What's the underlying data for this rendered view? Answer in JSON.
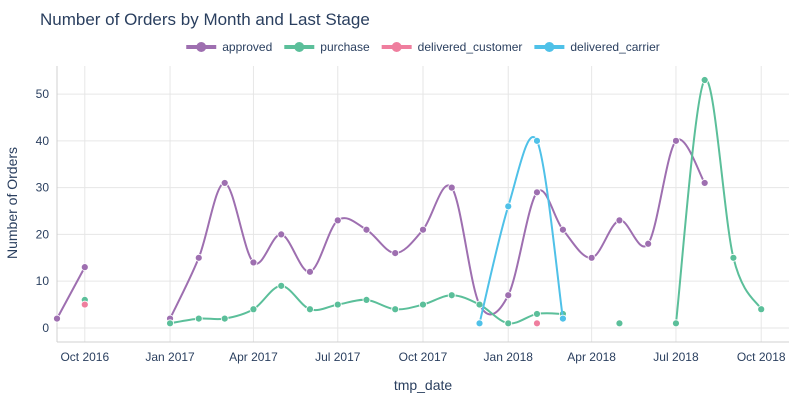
{
  "chart_data": {
    "type": "line",
    "title": "Number of Orders by Month and Last Stage",
    "xlabel": "tmp_date",
    "ylabel": "Number of Orders",
    "x_ticks": [
      "Oct 2016",
      "Jan 2017",
      "Apr 2017",
      "Jul 2017",
      "Oct 2017",
      "Jan 2018",
      "Apr 2018",
      "Jul 2018",
      "Oct 2018"
    ],
    "y_ticks": [
      "0",
      "10",
      "20",
      "30",
      "40",
      "50"
    ],
    "xlim": [
      "2016-09-01",
      "2018-10-31"
    ],
    "ylim": [
      -3,
      56
    ],
    "grid": true,
    "legend_position": "top",
    "series": [
      {
        "name": "approved",
        "color": "#9e6fb0",
        "points": [
          {
            "x": "2016-09-01",
            "y": 2
          },
          {
            "x": "2016-10-01",
            "y": 13
          },
          {
            "x": "2017-01-01",
            "y": 2
          },
          {
            "x": "2017-02-01",
            "y": 15
          },
          {
            "x": "2017-03-01",
            "y": 31
          },
          {
            "x": "2017-04-01",
            "y": 14
          },
          {
            "x": "2017-05-01",
            "y": 20
          },
          {
            "x": "2017-06-01",
            "y": 12
          },
          {
            "x": "2017-07-01",
            "y": 23
          },
          {
            "x": "2017-08-01",
            "y": 21
          },
          {
            "x": "2017-09-01",
            "y": 16
          },
          {
            "x": "2017-10-01",
            "y": 21
          },
          {
            "x": "2017-11-01",
            "y": 30
          },
          {
            "x": "2017-12-01",
            "y": 5
          },
          {
            "x": "2018-01-01",
            "y": 7
          },
          {
            "x": "2018-02-01",
            "y": 29
          },
          {
            "x": "2018-03-01",
            "y": 21
          },
          {
            "x": "2018-04-01",
            "y": 15
          },
          {
            "x": "2018-05-01",
            "y": 23
          },
          {
            "x": "2018-06-01",
            "y": 18
          },
          {
            "x": "2018-07-01",
            "y": 40
          },
          {
            "x": "2018-08-01",
            "y": 31
          }
        ]
      },
      {
        "name": "purchase",
        "color": "#5bbf9a",
        "points": [
          {
            "x": "2016-10-01",
            "y": 6
          },
          {
            "x": "2017-01-01",
            "y": 1
          },
          {
            "x": "2017-02-01",
            "y": 2
          },
          {
            "x": "2017-03-01",
            "y": 2
          },
          {
            "x": "2017-04-01",
            "y": 4
          },
          {
            "x": "2017-05-01",
            "y": 9
          },
          {
            "x": "2017-06-01",
            "y": 4
          },
          {
            "x": "2017-07-01",
            "y": 5
          },
          {
            "x": "2017-08-01",
            "y": 6
          },
          {
            "x": "2017-09-01",
            "y": 4
          },
          {
            "x": "2017-10-01",
            "y": 5
          },
          {
            "x": "2017-11-01",
            "y": 7
          },
          {
            "x": "2017-12-01",
            "y": 5
          },
          {
            "x": "2018-01-01",
            "y": 1
          },
          {
            "x": "2018-02-01",
            "y": 3
          },
          {
            "x": "2018-03-01",
            "y": 3
          },
          {
            "x": "2018-05-01",
            "y": 1
          },
          {
            "x": "2018-07-01",
            "y": 1
          },
          {
            "x": "2018-08-01",
            "y": 53
          },
          {
            "x": "2018-09-01",
            "y": 15
          },
          {
            "x": "2018-10-01",
            "y": 4
          }
        ]
      },
      {
        "name": "delivered_customer",
        "color": "#ef7e9e",
        "points": [
          {
            "x": "2016-10-01",
            "y": 5
          },
          {
            "x": "2018-02-01",
            "y": 1
          }
        ]
      },
      {
        "name": "delivered_carrier",
        "color": "#4fc1e8",
        "points": [
          {
            "x": "2017-12-01",
            "y": 1
          },
          {
            "x": "2018-01-01",
            "y": 26
          },
          {
            "x": "2018-02-01",
            "y": 40
          },
          {
            "x": "2018-03-01",
            "y": 2
          }
        ]
      }
    ]
  }
}
